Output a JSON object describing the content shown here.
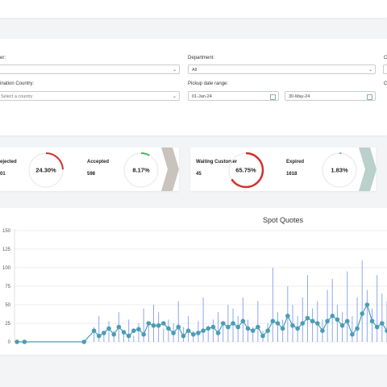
{
  "filters": {
    "customer_label": "er:",
    "department_label": "Department:",
    "department_value": "All",
    "country_label": "ination Country:",
    "country_placeholder": "Select a country",
    "pickup_label": "Pickup date range:",
    "date_from": "01-Jan-24",
    "date_to": "30-May-24",
    "right_labels": [
      "C",
      "C"
    ]
  },
  "kpis": [
    {
      "label": "ejected",
      "count": "01",
      "percent": 24.3,
      "percent_label": "24.30%",
      "color": "#d0312d"
    },
    {
      "label": "Accepted",
      "count": "598",
      "percent": 8.17,
      "percent_label": "8.17%",
      "color": "#3dbb5d"
    },
    {
      "label": "Waiting Customer",
      "count": "45",
      "percent": 65.75,
      "percent_label": "65.75%",
      "color": "#d0312d"
    },
    {
      "label": "Expired",
      "count": "1618",
      "percent": 1.83,
      "percent_label": "1.83%",
      "color": "#6fb7c9"
    }
  ],
  "chart_data": {
    "type": "combo",
    "title": "Spot Quotes",
    "x": [
      1,
      4,
      28,
      32,
      34,
      36,
      38,
      40,
      42,
      44,
      46,
      48,
      50,
      52,
      54,
      56,
      58,
      60,
      62,
      64,
      66,
      68,
      70,
      72,
      74,
      76,
      78,
      80,
      82,
      84,
      86,
      88,
      90,
      92,
      94,
      96,
      98,
      100,
      102,
      104,
      106,
      108,
      110,
      112,
      114,
      116,
      118,
      120,
      122,
      124,
      126,
      128,
      130,
      132,
      134,
      136,
      138,
      140,
      142,
      144,
      146,
      148,
      150
    ],
    "series": [
      {
        "type": "bar",
        "color": "#8ea7ef",
        "values": [
          0,
          0,
          0,
          20,
          35,
          10,
          28,
          15,
          40,
          12,
          30,
          8,
          25,
          45,
          22,
          50,
          40,
          18,
          30,
          25,
          55,
          20,
          35,
          15,
          28,
          60,
          22,
          30,
          40,
          25,
          50,
          45,
          35,
          60,
          30,
          20,
          55,
          15,
          25,
          100,
          40,
          30,
          75,
          50,
          35,
          60,
          90,
          45,
          55,
          30,
          70,
          85,
          50,
          40,
          95,
          35,
          60,
          110,
          70,
          45,
          90,
          65,
          55
        ]
      },
      {
        "type": "line",
        "color": "#4a9db5",
        "values": [
          0,
          0,
          0,
          15,
          8,
          12,
          18,
          10,
          20,
          13,
          8,
          15,
          17,
          10,
          25,
          22,
          22,
          25,
          18,
          12,
          20,
          8,
          15,
          10,
          12,
          15,
          18,
          20,
          12,
          25,
          20,
          25,
          20,
          28,
          18,
          15,
          20,
          8,
          15,
          28,
          25,
          18,
          35,
          22,
          18,
          25,
          32,
          28,
          25,
          15,
          28,
          35,
          30,
          22,
          28,
          10,
          18,
          38,
          50,
          28,
          20,
          25,
          15
        ]
      }
    ],
    "xlim": [
      0,
      150
    ],
    "ylim": [
      0,
      150
    ],
    "yticks": [
      0,
      25,
      50,
      75,
      100,
      125,
      150
    ],
    "grid": true
  }
}
